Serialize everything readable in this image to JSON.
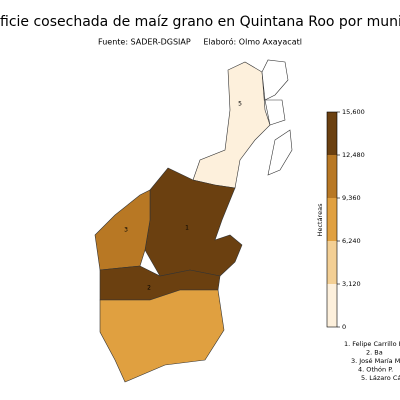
{
  "title": "ficie cosechada de maíz grano en Quintana Roo por municipio (",
  "subtitle": "Fuente: SADER-DGSIAP     Elaboró: Olmo Axayacatl",
  "map_labels": [
    "5",
    "3",
    "1",
    "2"
  ],
  "colorbar": {
    "label": "Hectáreas",
    "colors": [
      "#fdf0dc",
      "#f3cf94",
      "#e0a040",
      "#b87824",
      "#6b4010"
    ],
    "lim": [
      0,
      15600
    ],
    "ticks": [
      0,
      {
        "value": 3120,
        "label": "3,120"
      },
      {
        "value": 6240,
        "label": "6,240"
      },
      {
        "value": 9360,
        "label": "9,360"
      },
      {
        "value": 12480,
        "label": "12,480"
      },
      {
        "value": 15600,
        "label": "15,600"
      }
    ]
  },
  "legend": [
    "1. Felipe Carrillo P",
    "2. Ba",
    "3. José María M",
    "4. Othón P.",
    "5. Lázaro Cá"
  ]
}
